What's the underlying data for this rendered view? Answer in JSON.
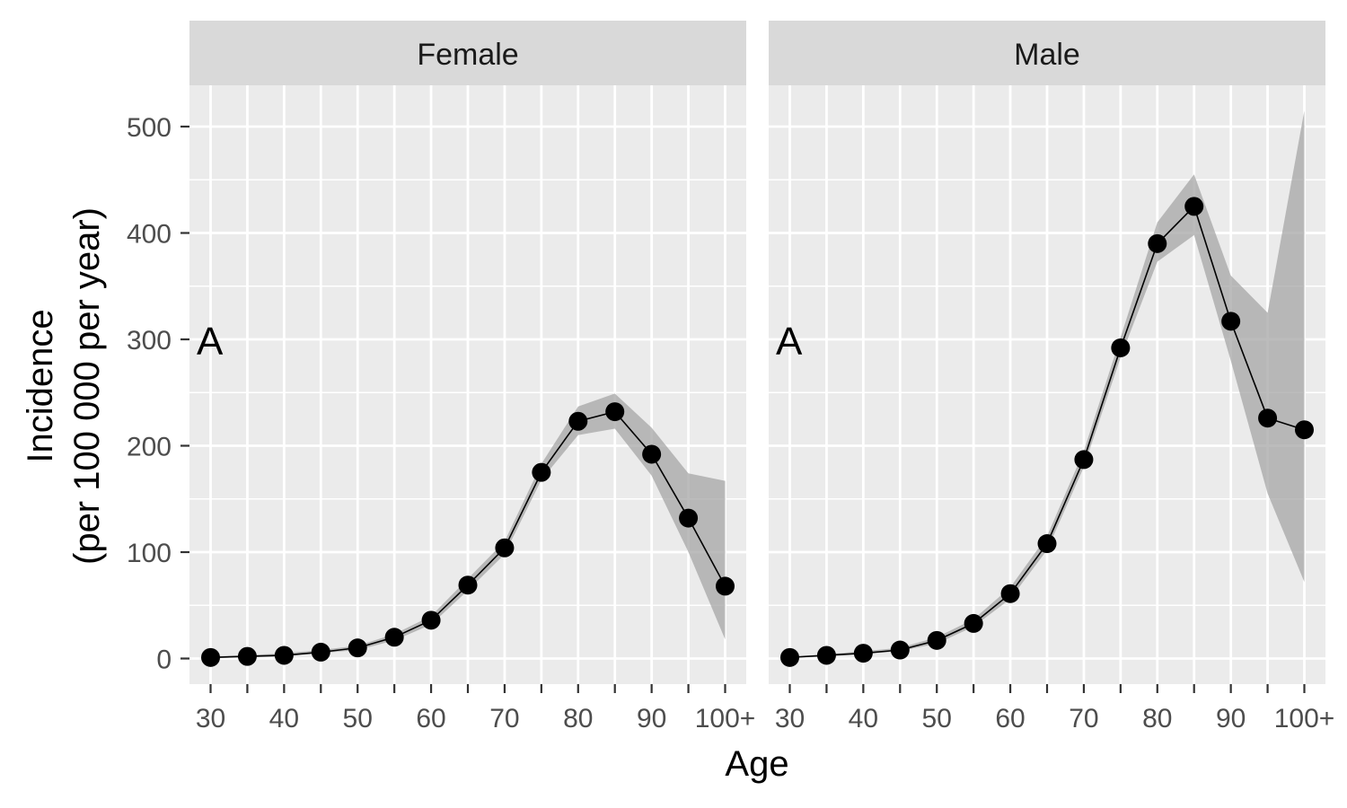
{
  "chart_data": {
    "type": "line",
    "xlabel": "Age",
    "ylabel": [
      "Incidence",
      "(per 100 000 per year)"
    ],
    "categories": [
      "30",
      "35",
      "40",
      "45",
      "50",
      "55",
      "60",
      "65",
      "70",
      "75",
      "80",
      "85",
      "90",
      "95",
      "100+"
    ],
    "x_tick_labels": [
      "30",
      "40",
      "50",
      "60",
      "70",
      "80",
      "90",
      "100+"
    ],
    "ylim": [
      -25,
      540
    ],
    "y_ticks": [
      0,
      100,
      200,
      300,
      400,
      500
    ],
    "grid": true,
    "ribbon": "95% confidence band (grey)",
    "facets": [
      {
        "name": "Female",
        "annotation": "A",
        "values": [
          1,
          2,
          3,
          6,
          10,
          20,
          36,
          69,
          104,
          175,
          223,
          232,
          192,
          132,
          68
        ],
        "lower": [
          0.5,
          1,
          2,
          5,
          8,
          17,
          32,
          64,
          98,
          168,
          210,
          216,
          172,
          100,
          18
        ],
        "upper": [
          2,
          3,
          5,
          8,
          12,
          23,
          40,
          75,
          110,
          183,
          237,
          249,
          217,
          174,
          167
        ]
      },
      {
        "name": "Male",
        "annotation": "A",
        "values": [
          1,
          3,
          5,
          8,
          17,
          33,
          61,
          108,
          187,
          292,
          390,
          425,
          317,
          226,
          215
        ],
        "lower": [
          0.5,
          2,
          4,
          7,
          14,
          30,
          56,
          102,
          180,
          283,
          373,
          398,
          280,
          155,
          72
        ],
        "upper": [
          2,
          4,
          7,
          10,
          20,
          37,
          67,
          115,
          195,
          302,
          410,
          455,
          360,
          325,
          515
        ]
      }
    ]
  }
}
